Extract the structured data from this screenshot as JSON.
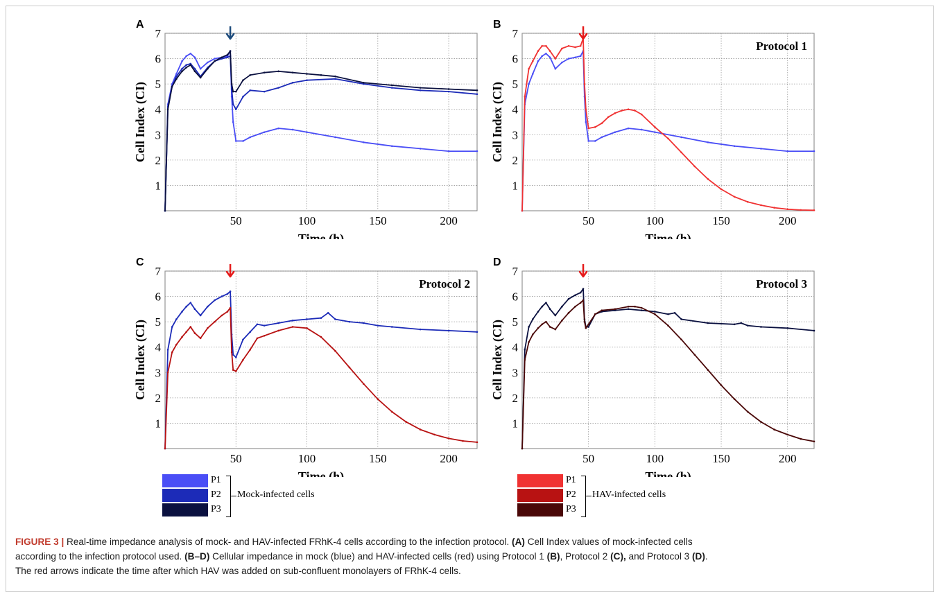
{
  "colors": {
    "p1_mock": "#4a4ef6",
    "p2_mock": "#1c2bb8",
    "p3_mock": "#0b1140",
    "p1_hav": "#f03232",
    "p2_hav": "#b81212",
    "p3_hav": "#4a0808",
    "arrow_dark": "#1d4b7c",
    "arrow_red": "#e51a1a"
  },
  "legend": {
    "mock": {
      "items": [
        "P1",
        "P2",
        "P3"
      ],
      "label": "Mock-infected cells"
    },
    "hav": {
      "items": [
        "P1",
        "P2",
        "P3"
      ],
      "label": "HAV-infected cells"
    }
  },
  "caption": {
    "figure_label": "FIGURE 3 |",
    "line1_text": " Real-time impedance analysis of mock- and HAV-infected FRhK-4 cells according to the infection protocol. ",
    "tag_A": "(A)",
    "line1_tail": " Cell Index values of mock-infected cells",
    "line2_head": "according to the infection protocol used. ",
    "tag_BD": "(B–D)",
    "line2_text": " Cellular impedance in mock (blue) and HAV-infected cells (red) using Protocol 1 ",
    "tag_B": "(B)",
    "line2_mid": ", Protocol 2 ",
    "tag_C": "(C),",
    "line2_mid2": " and Protocol 3 ",
    "tag_D": "(D)",
    "line2_end": ".",
    "line3": "The red arrows indicate the time after which HAV was added on sub-confluent monolayers of FRhK-4 cells."
  },
  "chart_data": [
    {
      "panel": "A",
      "type": "line",
      "protocol": "",
      "xlabel": "Time (h)",
      "ylabel": "Cell Index (CI)",
      "xlim": [
        0,
        220
      ],
      "ylim": [
        0,
        7
      ],
      "xticks": [
        "50",
        "100",
        "150",
        "200"
      ],
      "xtick_values": [
        50,
        100,
        150,
        200
      ],
      "yticks": [
        "1",
        "2",
        "3",
        "4",
        "5",
        "6",
        "7"
      ],
      "ytick_values": [
        1,
        2,
        3,
        4,
        5,
        6,
        7
      ],
      "grid": true,
      "arrow_at_x": 46,
      "arrow_color": "dark",
      "series": [
        {
          "color_key": "p1_mock",
          "x": [
            0,
            2,
            5,
            8,
            12,
            15,
            18,
            21,
            25,
            30,
            35,
            40,
            44,
            46,
            47,
            48,
            50,
            55,
            60,
            70,
            80,
            90,
            100,
            120,
            140,
            160,
            180,
            200,
            220
          ],
          "y": [
            0,
            4.2,
            5.0,
            5.4,
            5.9,
            6.1,
            6.2,
            6.05,
            5.6,
            5.85,
            6.0,
            6.05,
            6.1,
            6.3,
            4.5,
            3.5,
            2.75,
            2.75,
            2.9,
            3.1,
            3.25,
            3.2,
            3.1,
            2.9,
            2.7,
            2.55,
            2.45,
            2.35,
            2.35
          ]
        },
        {
          "color_key": "p2_mock",
          "x": [
            0,
            2,
            5,
            8,
            12,
            15,
            18,
            21,
            25,
            30,
            35,
            40,
            44,
            46,
            47,
            48,
            50,
            55,
            60,
            70,
            80,
            90,
            100,
            120,
            140,
            160,
            180,
            200,
            220
          ],
          "y": [
            0,
            4.1,
            4.9,
            5.3,
            5.6,
            5.75,
            5.8,
            5.6,
            5.3,
            5.65,
            5.9,
            6.0,
            6.05,
            6.1,
            4.8,
            4.2,
            4.0,
            4.5,
            4.75,
            4.7,
            4.85,
            5.05,
            5.15,
            5.2,
            5.0,
            4.85,
            4.75,
            4.7,
            4.6
          ]
        },
        {
          "color_key": "p3_mock",
          "x": [
            0,
            2,
            5,
            8,
            12,
            15,
            18,
            21,
            25,
            30,
            35,
            40,
            44,
            46,
            47,
            48,
            50,
            55,
            60,
            70,
            80,
            90,
            100,
            110,
            120,
            140,
            160,
            180,
            200,
            220
          ],
          "y": [
            0,
            4.0,
            4.9,
            5.2,
            5.5,
            5.65,
            5.75,
            5.5,
            5.25,
            5.6,
            5.9,
            6.05,
            6.15,
            6.3,
            5.0,
            4.7,
            4.7,
            5.15,
            5.35,
            5.45,
            5.5,
            5.45,
            5.4,
            5.35,
            5.3,
            5.05,
            4.95,
            4.85,
            4.8,
            4.75
          ]
        }
      ]
    },
    {
      "panel": "B",
      "type": "line",
      "protocol": "Protocol 1",
      "xlabel": "Time (h)",
      "ylabel": "Cell Index (CI)",
      "xlim": [
        0,
        220
      ],
      "ylim": [
        0,
        7
      ],
      "xticks": [
        "50",
        "100",
        "150",
        "200"
      ],
      "xtick_values": [
        50,
        100,
        150,
        200
      ],
      "yticks": [
        "1",
        "2",
        "3",
        "4",
        "5",
        "6",
        "7"
      ],
      "ytick_values": [
        1,
        2,
        3,
        4,
        5,
        6,
        7
      ],
      "grid": true,
      "arrow_at_x": 46,
      "arrow_color": "red",
      "series": [
        {
          "color_key": "p1_mock",
          "x": [
            0,
            2,
            5,
            8,
            12,
            15,
            18,
            21,
            25,
            30,
            35,
            40,
            44,
            46,
            47,
            48,
            50,
            55,
            60,
            70,
            80,
            90,
            100,
            120,
            140,
            160,
            180,
            200,
            220
          ],
          "y": [
            0,
            4.2,
            5.0,
            5.4,
            5.9,
            6.1,
            6.2,
            6.05,
            5.6,
            5.85,
            6.0,
            6.05,
            6.1,
            6.3,
            4.5,
            3.5,
            2.75,
            2.75,
            2.9,
            3.1,
            3.25,
            3.2,
            3.1,
            2.9,
            2.7,
            2.55,
            2.45,
            2.35,
            2.35
          ]
        },
        {
          "color_key": "p1_hav",
          "x": [
            0,
            2,
            5,
            8,
            12,
            15,
            18,
            21,
            25,
            30,
            35,
            40,
            44,
            46,
            47,
            48,
            50,
            55,
            60,
            65,
            70,
            75,
            80,
            85,
            90,
            100,
            110,
            120,
            130,
            140,
            150,
            160,
            170,
            180,
            190,
            200,
            210,
            220
          ],
          "y": [
            0,
            4.5,
            5.6,
            5.9,
            6.3,
            6.5,
            6.5,
            6.3,
            6.0,
            6.4,
            6.5,
            6.45,
            6.5,
            6.8,
            5.0,
            4.0,
            3.25,
            3.3,
            3.45,
            3.7,
            3.85,
            3.95,
            4.0,
            3.95,
            3.8,
            3.3,
            2.85,
            2.3,
            1.75,
            1.25,
            0.85,
            0.55,
            0.35,
            0.22,
            0.12,
            0.06,
            0.03,
            0.02
          ]
        }
      ]
    },
    {
      "panel": "C",
      "type": "line",
      "protocol": "Protocol 2",
      "xlabel": "Time (h)",
      "ylabel": "Cell Index (CI)",
      "xlim": [
        0,
        220
      ],
      "ylim": [
        0,
        7
      ],
      "xticks": [
        "50",
        "100",
        "150",
        "200"
      ],
      "xtick_values": [
        50,
        100,
        150,
        200
      ],
      "yticks": [
        "1",
        "2",
        "3",
        "4",
        "5",
        "6",
        "7"
      ],
      "ytick_values": [
        1,
        2,
        3,
        4,
        5,
        6,
        7
      ],
      "grid": true,
      "arrow_at_x": 46,
      "arrow_color": "red",
      "series": [
        {
          "color_key": "p2_mock",
          "x": [
            0,
            2,
            5,
            8,
            12,
            15,
            18,
            21,
            25,
            30,
            35,
            40,
            44,
            46,
            47,
            48,
            50,
            55,
            60,
            65,
            70,
            80,
            90,
            100,
            110,
            115,
            120,
            130,
            140,
            150,
            160,
            180,
            200,
            220
          ],
          "y": [
            0,
            3.9,
            4.8,
            5.1,
            5.4,
            5.6,
            5.75,
            5.5,
            5.25,
            5.6,
            5.85,
            6.0,
            6.1,
            6.2,
            4.5,
            3.7,
            3.6,
            4.3,
            4.6,
            4.9,
            4.85,
            4.95,
            5.05,
            5.1,
            5.15,
            5.35,
            5.1,
            5.0,
            4.95,
            4.85,
            4.8,
            4.7,
            4.65,
            4.6
          ]
        },
        {
          "color_key": "p2_hav",
          "x": [
            0,
            2,
            5,
            8,
            12,
            15,
            18,
            21,
            25,
            30,
            35,
            40,
            44,
            46,
            47,
            48,
            50,
            55,
            60,
            65,
            70,
            80,
            90,
            100,
            110,
            120,
            130,
            140,
            150,
            160,
            170,
            180,
            190,
            200,
            210,
            220
          ],
          "y": [
            0,
            3.0,
            3.8,
            4.1,
            4.4,
            4.6,
            4.8,
            4.55,
            4.35,
            4.75,
            5.0,
            5.25,
            5.4,
            5.55,
            3.8,
            3.1,
            3.05,
            3.5,
            3.9,
            4.35,
            4.45,
            4.65,
            4.8,
            4.75,
            4.4,
            3.85,
            3.2,
            2.55,
            1.95,
            1.45,
            1.05,
            0.75,
            0.55,
            0.4,
            0.3,
            0.25
          ]
        }
      ]
    },
    {
      "panel": "D",
      "type": "line",
      "protocol": "Protocol 3",
      "xlabel": "Time (h)",
      "ylabel": "Cell Index (CI)",
      "xlim": [
        0,
        220
      ],
      "ylim": [
        0,
        7
      ],
      "xticks": [
        "50",
        "100",
        "150",
        "200"
      ],
      "xtick_values": [
        50,
        100,
        150,
        200
      ],
      "yticks": [
        "1",
        "2",
        "3",
        "4",
        "5",
        "6",
        "7"
      ],
      "ytick_values": [
        1,
        2,
        3,
        4,
        5,
        6,
        7
      ],
      "grid": true,
      "arrow_at_x": 46,
      "arrow_color": "red",
      "series": [
        {
          "color_key": "p3_mock",
          "x": [
            0,
            2,
            5,
            8,
            12,
            15,
            18,
            21,
            25,
            30,
            35,
            40,
            44,
            46,
            47,
            48,
            50,
            55,
            60,
            70,
            80,
            90,
            100,
            110,
            115,
            120,
            140,
            160,
            165,
            170,
            180,
            200,
            220
          ],
          "y": [
            0,
            3.9,
            4.8,
            5.1,
            5.4,
            5.6,
            5.75,
            5.5,
            5.25,
            5.6,
            5.9,
            6.05,
            6.15,
            6.3,
            5.1,
            4.8,
            4.8,
            5.3,
            5.4,
            5.45,
            5.5,
            5.45,
            5.4,
            5.3,
            5.35,
            5.1,
            4.95,
            4.9,
            4.95,
            4.85,
            4.8,
            4.75,
            4.65
          ]
        },
        {
          "color_key": "p3_hav",
          "x": [
            0,
            2,
            5,
            8,
            12,
            15,
            18,
            21,
            25,
            30,
            35,
            40,
            44,
            46,
            47,
            48,
            50,
            55,
            60,
            70,
            80,
            85,
            90,
            100,
            110,
            120,
            130,
            140,
            150,
            160,
            170,
            180,
            190,
            200,
            210,
            220
          ],
          "y": [
            0,
            3.5,
            4.2,
            4.5,
            4.75,
            4.9,
            5.0,
            4.8,
            4.7,
            5.05,
            5.35,
            5.6,
            5.75,
            5.85,
            5.0,
            4.75,
            4.9,
            5.3,
            5.45,
            5.5,
            5.6,
            5.6,
            5.55,
            5.3,
            4.85,
            4.3,
            3.7,
            3.1,
            2.5,
            1.95,
            1.45,
            1.05,
            0.75,
            0.55,
            0.38,
            0.28
          ]
        }
      ]
    }
  ]
}
